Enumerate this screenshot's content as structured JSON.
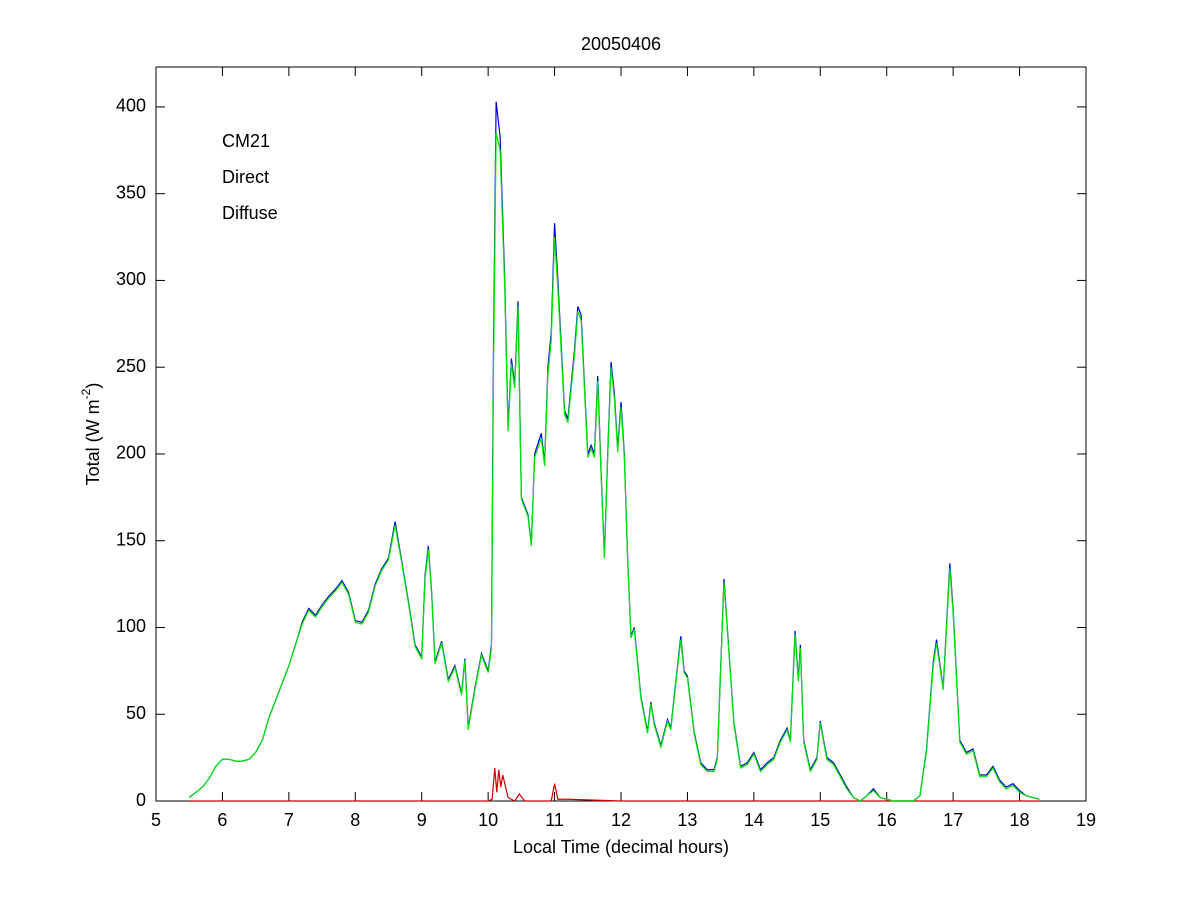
{
  "chart_data": {
    "type": "line",
    "title": "20050406",
    "xlabel": "Local Time (decimal hours)",
    "ylabel": {
      "text": "Total (W m",
      "superscript": "-2",
      "suffix": ")"
    },
    "xlim": [
      5,
      19
    ],
    "xticks": [
      5,
      6,
      7,
      8,
      9,
      10,
      11,
      12,
      13,
      14,
      15,
      16,
      17,
      18,
      19
    ],
    "ylim": [
      0,
      423
    ],
    "yticks": [
      0,
      50,
      100,
      150,
      200,
      250,
      300,
      350,
      400
    ],
    "grid": false,
    "legend": "upper left",
    "series": [
      {
        "name": "CM21",
        "color": "#0000cc",
        "x": [
          5.5,
          5.6,
          5.7,
          5.8,
          5.9,
          6.0,
          6.1,
          6.2,
          6.3,
          6.4,
          6.5,
          6.6,
          6.7,
          6.8,
          6.9,
          7.0,
          7.1,
          7.2,
          7.3,
          7.4,
          7.5,
          7.6,
          7.7,
          7.8,
          7.9,
          8.0,
          8.1,
          8.2,
          8.3,
          8.4,
          8.5,
          8.6,
          8.7,
          8.8,
          8.9,
          9.0,
          9.05,
          9.1,
          9.15,
          9.2,
          9.3,
          9.4,
          9.5,
          9.6,
          9.65,
          9.7,
          9.8,
          9.9,
          10.0,
          10.05,
          10.08,
          10.12,
          10.18,
          10.25,
          10.3,
          10.35,
          10.4,
          10.45,
          10.5,
          10.6,
          10.65,
          10.7,
          10.8,
          10.85,
          10.9,
          10.95,
          11.0,
          11.05,
          11.15,
          11.2,
          11.3,
          11.35,
          11.4,
          11.5,
          11.55,
          11.6,
          11.65,
          11.7,
          11.75,
          11.8,
          11.85,
          11.9,
          11.95,
          12.0,
          12.05,
          12.1,
          12.15,
          12.2,
          12.3,
          12.4,
          12.45,
          12.5,
          12.6,
          12.7,
          12.75,
          12.8,
          12.9,
          12.95,
          13.0,
          13.1,
          13.2,
          13.3,
          13.4,
          13.45,
          13.55,
          13.6,
          13.7,
          13.8,
          13.9,
          14.0,
          14.1,
          14.2,
          14.3,
          14.4,
          14.5,
          14.55,
          14.62,
          14.67,
          14.7,
          14.75,
          14.85,
          14.95,
          15.0,
          15.05,
          15.1,
          15.2,
          15.3,
          15.4,
          15.5,
          15.6,
          15.7,
          15.8,
          15.9,
          16.0,
          16.1,
          16.2,
          16.3,
          16.4,
          16.5,
          16.6,
          16.7,
          16.75,
          16.85,
          16.95,
          17.0,
          17.1,
          17.2,
          17.3,
          17.4,
          17.5,
          17.6,
          17.7,
          17.8,
          17.9,
          18.0,
          18.1,
          18.2,
          18.3
        ],
        "values": [
          2,
          5,
          8,
          13,
          20,
          24,
          24,
          23,
          23,
          24,
          28,
          35,
          48,
          58,
          68,
          78,
          90,
          103,
          111,
          107,
          113,
          118,
          122,
          127,
          120,
          104,
          103,
          110,
          125,
          134,
          140,
          161,
          138,
          115,
          90,
          83,
          130,
          147,
          120,
          80,
          92,
          70,
          78,
          62,
          82,
          42,
          65,
          85,
          75,
          90,
          260,
          403,
          383,
          300,
          215,
          255,
          240,
          288,
          175,
          165,
          148,
          200,
          212,
          195,
          250,
          270,
          333,
          300,
          225,
          220,
          260,
          285,
          280,
          200,
          205,
          200,
          245,
          190,
          141,
          200,
          253,
          235,
          203,
          230,
          200,
          140,
          95,
          100,
          60,
          40,
          57,
          45,
          32,
          47,
          42,
          60,
          95,
          75,
          72,
          40,
          22,
          18,
          18,
          25,
          128,
          100,
          45,
          20,
          22,
          28,
          18,
          22,
          25,
          35,
          42,
          35,
          98,
          70,
          90,
          35,
          18,
          25,
          46,
          35,
          25,
          22,
          15,
          8,
          2,
          0,
          3,
          7,
          2,
          1,
          0,
          0,
          0,
          0,
          3,
          30,
          80,
          93,
          65,
          137,
          110,
          35,
          28,
          30,
          15,
          15,
          20,
          12,
          8,
          10,
          6,
          3,
          2,
          1
        ]
      },
      {
        "name": "Direct",
        "color": "#cc0000",
        "x": [
          5.5,
          6.0,
          7.0,
          8.0,
          9.0,
          10.0,
          10.06,
          10.1,
          10.13,
          10.16,
          10.19,
          10.22,
          10.3,
          10.4,
          10.47,
          10.55,
          10.95,
          11.0,
          11.05,
          11.2,
          12.0,
          13.0,
          14.0,
          15.0,
          16.0,
          17.0,
          18.0,
          18.3
        ],
        "values": [
          0,
          0,
          0,
          0,
          0,
          0,
          1,
          19,
          5,
          18,
          8,
          15,
          2,
          0,
          4,
          0,
          0,
          10,
          1,
          1,
          0,
          0,
          0,
          0,
          0,
          0,
          0,
          0
        ]
      },
      {
        "name": "Diffuse",
        "color": "#00e600",
        "x": [
          5.5,
          5.6,
          5.7,
          5.8,
          5.9,
          6.0,
          6.1,
          6.2,
          6.3,
          6.4,
          6.5,
          6.6,
          6.7,
          6.8,
          6.9,
          7.0,
          7.1,
          7.2,
          7.3,
          7.4,
          7.5,
          7.6,
          7.7,
          7.8,
          7.9,
          8.0,
          8.1,
          8.2,
          8.3,
          8.4,
          8.5,
          8.6,
          8.7,
          8.8,
          8.9,
          9.0,
          9.05,
          9.1,
          9.15,
          9.2,
          9.3,
          9.4,
          9.5,
          9.6,
          9.65,
          9.7,
          9.8,
          9.9,
          10.0,
          10.05,
          10.08,
          10.12,
          10.18,
          10.25,
          10.3,
          10.35,
          10.4,
          10.45,
          10.5,
          10.6,
          10.65,
          10.7,
          10.8,
          10.85,
          10.9,
          10.95,
          11.0,
          11.05,
          11.15,
          11.2,
          11.3,
          11.35,
          11.4,
          11.5,
          11.55,
          11.6,
          11.65,
          11.7,
          11.75,
          11.8,
          11.85,
          11.9,
          11.95,
          12.0,
          12.05,
          12.1,
          12.15,
          12.2,
          12.3,
          12.4,
          12.45,
          12.5,
          12.6,
          12.7,
          12.75,
          12.8,
          12.9,
          12.95,
          13.0,
          13.1,
          13.2,
          13.3,
          13.4,
          13.45,
          13.55,
          13.6,
          13.7,
          13.8,
          13.9,
          14.0,
          14.1,
          14.2,
          14.3,
          14.4,
          14.5,
          14.55,
          14.62,
          14.67,
          14.7,
          14.75,
          14.85,
          14.95,
          15.0,
          15.05,
          15.1,
          15.2,
          15.3,
          15.4,
          15.5,
          15.6,
          15.7,
          15.8,
          15.9,
          16.0,
          16.1,
          16.2,
          16.3,
          16.4,
          16.5,
          16.6,
          16.7,
          16.75,
          16.85,
          16.95,
          17.0,
          17.1,
          17.2,
          17.3,
          17.4,
          17.5,
          17.6,
          17.7,
          17.8,
          17.9,
          18.0,
          18.1,
          18.2,
          18.3
        ],
        "values": [
          2,
          5,
          8,
          13,
          20,
          24,
          24,
          23,
          23,
          24,
          28,
          35,
          48,
          58,
          68,
          78,
          90,
          102,
          110,
          106,
          112,
          117,
          121,
          126,
          119,
          103,
          102,
          109,
          124,
          133,
          139,
          159,
          137,
          114,
          89,
          82,
          128,
          145,
          119,
          79,
          91,
          69,
          77,
          61,
          81,
          41,
          64,
          84,
          74,
          88,
          245,
          385,
          375,
          295,
          213,
          252,
          238,
          285,
          174,
          164,
          147,
          198,
          209,
          193,
          246,
          266,
          325,
          295,
          223,
          218,
          257,
          282,
          277,
          198,
          203,
          198,
          242,
          188,
          140,
          198,
          250,
          232,
          201,
          227,
          198,
          139,
          94,
          99,
          59,
          39,
          56,
          44,
          31,
          46,
          41,
          59,
          93,
          74,
          71,
          39,
          21,
          17,
          17,
          24,
          126,
          99,
          44,
          19,
          21,
          27,
          17,
          21,
          24,
          34,
          41,
          34,
          96,
          69,
          88,
          34,
          17,
          24,
          45,
          34,
          24,
          21,
          14,
          7,
          2,
          0,
          3,
          6,
          2,
          1,
          0,
          0,
          0,
          0,
          3,
          29,
          78,
          91,
          64,
          134,
          108,
          34,
          27,
          29,
          14,
          14,
          19,
          11,
          7,
          9,
          5,
          3,
          2,
          1
        ]
      }
    ]
  }
}
